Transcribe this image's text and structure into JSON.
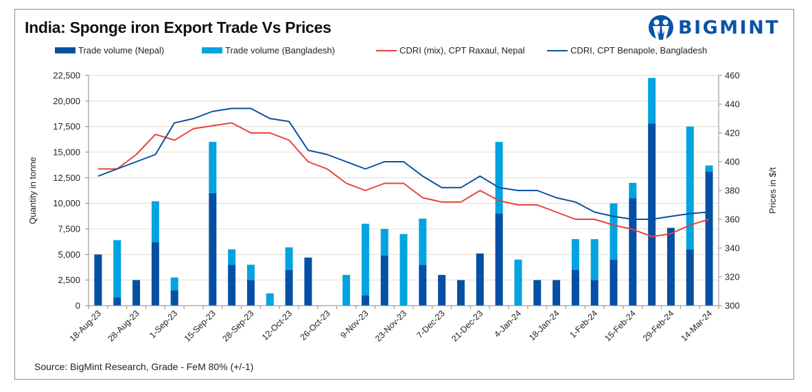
{
  "header": {
    "title": "India: Sponge iron Export Trade Vs Prices",
    "logo_text": "BIGMINT",
    "logo_icon": "bigmint-people-icon"
  },
  "legend": [
    {
      "label": "Trade volume (Nepal)",
      "type": "bar",
      "color": "#0450A5"
    },
    {
      "label": "Trade volume (Bangladesh)",
      "type": "bar",
      "color": "#02A3E0"
    },
    {
      "label": "CDRI (mix), CPT Raxaul, Nepal",
      "type": "line",
      "color": "#E8413C"
    },
    {
      "label": "CDRI, CPT Benapole, Bangladesh",
      "type": "line",
      "color": "#0A4FA0"
    }
  ],
  "footer": {
    "source": "Source: BigMint Research, Grade - FeM 80% (+/-1)"
  },
  "chart_data": {
    "type": "bar",
    "subtype": "stacked bar + line (dual axis)",
    "title": "India: Sponge iron Export Trade Vs Prices",
    "xlabel": "",
    "ylabel": "Quantity in tonne",
    "y2label": "Prices in $/t",
    "ylim": [
      0,
      22500
    ],
    "y2lim": [
      300,
      460
    ],
    "yticks": [
      "0",
      "2,500",
      "5,000",
      "7,500",
      "10,000",
      "12,500",
      "15,000",
      "17,500",
      "20,000",
      "22,500"
    ],
    "y2ticks": [
      "300",
      "320",
      "340",
      "360",
      "380",
      "400",
      "420",
      "440",
      "460"
    ],
    "grid": true,
    "legend_position": "top",
    "categories": [
      "18-Aug-23",
      "",
      "28-Aug-23",
      "",
      "1-Sep-23",
      "",
      "15-Sep-23",
      "",
      "28-Sep-23",
      "",
      "12-Oct-23",
      "",
      "26-Oct-23",
      "",
      "9-Nov-23",
      "",
      "23-Nov-23",
      "",
      "7-Dec-23",
      "",
      "21-Dec-23",
      "",
      "4-Jan-24",
      "",
      "18-Jan-24",
      "",
      "1-Feb-24",
      "",
      "15-Feb-24",
      "",
      "29-Feb-24",
      "",
      "14-Mar-24"
    ],
    "series": [
      {
        "name": "Trade volume (Nepal)",
        "kind": "bar",
        "axis": "left",
        "stack": "volume",
        "color": "#0450A5",
        "values": [
          5000,
          800,
          2500,
          6200,
          1500,
          0,
          11000,
          4000,
          2500,
          0,
          3500,
          4700,
          0,
          0,
          1000,
          4900,
          0,
          4000,
          3000,
          2500,
          5100,
          9000,
          0,
          2500,
          2500,
          3500,
          2500,
          4500,
          10500,
          17800,
          7600,
          5500,
          13100
        ]
      },
      {
        "name": "Trade volume (Bangladesh)",
        "kind": "bar",
        "axis": "left",
        "stack": "volume",
        "color": "#02A3E0",
        "values": [
          0,
          5600,
          0,
          4000,
          1250,
          0,
          5000,
          1500,
          1500,
          1200,
          2200,
          0,
          0,
          3000,
          7000,
          2600,
          7000,
          4500,
          0,
          0,
          0,
          7000,
          4500,
          0,
          0,
          3000,
          4000,
          5500,
          1500,
          4450,
          0,
          12000,
          600
        ]
      },
      {
        "name": "CDRI (mix), CPT Raxaul, Nepal",
        "kind": "line",
        "axis": "right",
        "color": "#E8413C",
        "values": [
          395,
          395,
          405,
          419,
          415,
          423,
          425,
          427,
          420,
          420,
          415,
          400,
          395,
          385,
          380,
          385,
          385,
          375,
          372,
          372,
          380,
          373,
          370,
          370,
          365,
          360,
          360,
          356,
          353,
          348,
          350,
          356,
          360
        ]
      },
      {
        "name": "CDRI, CPT Benapole, Bangladesh",
        "kind": "line",
        "axis": "right",
        "color": "#0A4FA0",
        "values": [
          390,
          395,
          400,
          405,
          427,
          430,
          435,
          437,
          437,
          430,
          428,
          408,
          405,
          400,
          395,
          400,
          400,
          390,
          382,
          382,
          390,
          382,
          380,
          380,
          375,
          372,
          365,
          362,
          360,
          360,
          362,
          364,
          365
        ]
      }
    ]
  }
}
